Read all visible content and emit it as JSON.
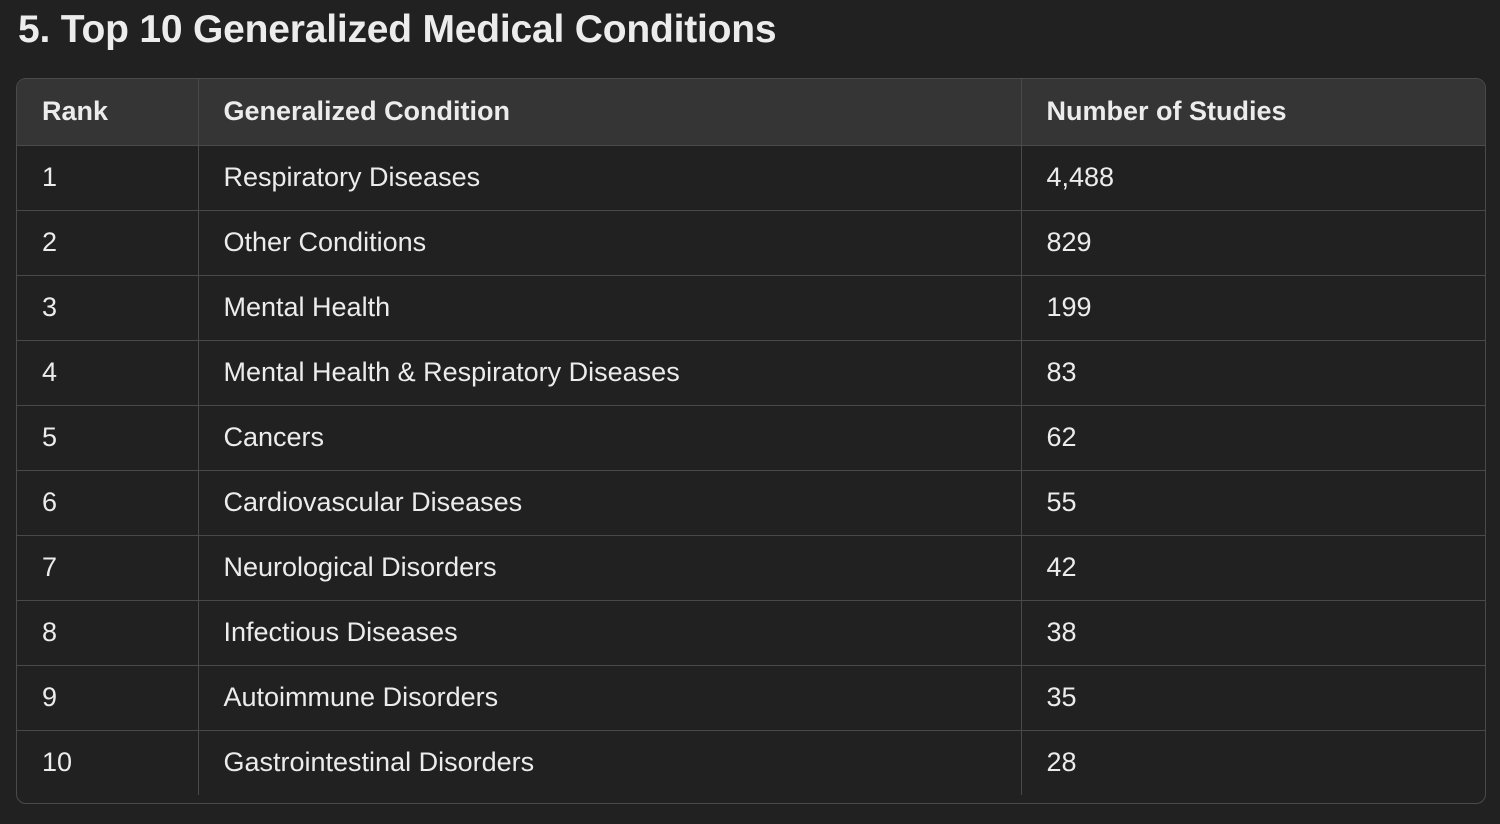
{
  "title": "5. Top 10 Generalized Medical Conditions",
  "table": {
    "headers": [
      "Rank",
      "Generalized Condition",
      "Number of Studies"
    ],
    "rows": [
      [
        "1",
        "Respiratory Diseases",
        "4,488"
      ],
      [
        "2",
        "Other Conditions",
        "829"
      ],
      [
        "3",
        "Mental Health",
        "199"
      ],
      [
        "4",
        "Mental Health & Respiratory Diseases",
        "83"
      ],
      [
        "5",
        "Cancers",
        "62"
      ],
      [
        "6",
        "Cardiovascular Diseases",
        "55"
      ],
      [
        "7",
        "Neurological Disorders",
        "42"
      ],
      [
        "8",
        "Infectious Diseases",
        "38"
      ],
      [
        "9",
        "Autoimmune Disorders",
        "35"
      ],
      [
        "10",
        "Gastrointestinal Disorders",
        "28"
      ]
    ]
  }
}
